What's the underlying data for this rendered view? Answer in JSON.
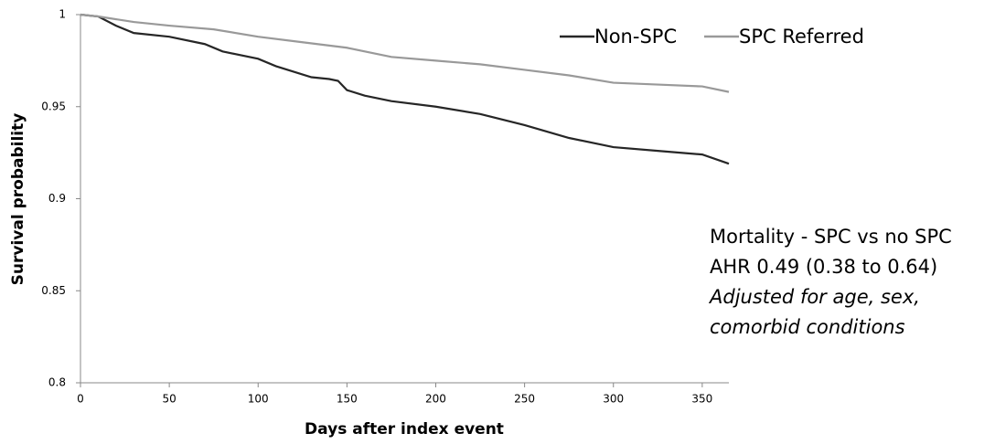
{
  "chart_data": {
    "type": "line",
    "x_label": "Days after index event",
    "y_label": "Survival probability",
    "xlim": [
      0,
      365
    ],
    "xticks": [
      0,
      50,
      100,
      150,
      200,
      250,
      300,
      350
    ],
    "ylim": [
      0.8,
      1
    ],
    "yticks": [
      0.8,
      0.85,
      0.9,
      0.95,
      1
    ],
    "grid": false,
    "legend": "top-right",
    "series": [
      {
        "name": "Non-SPC",
        "color": "#262626",
        "x": [
          0,
          10,
          20,
          30,
          50,
          70,
          80,
          100,
          110,
          130,
          140,
          145,
          150,
          160,
          175,
          200,
          225,
          250,
          275,
          300,
          325,
          350,
          365
        ],
        "values": [
          1,
          0.999,
          0.994,
          0.99,
          0.988,
          0.984,
          0.98,
          0.976,
          0.972,
          0.966,
          0.965,
          0.964,
          0.959,
          0.956,
          0.953,
          0.95,
          0.946,
          0.94,
          0.933,
          0.928,
          0.926,
          0.924,
          0.919
        ]
      },
      {
        "name": "SPC Referred",
        "color": "#999999",
        "x": [
          0,
          10,
          30,
          50,
          75,
          100,
          125,
          150,
          175,
          200,
          225,
          250,
          275,
          300,
          325,
          350,
          365
        ],
        "values": [
          1,
          0.999,
          0.996,
          0.994,
          0.992,
          0.988,
          0.985,
          0.982,
          0.977,
          0.975,
          0.973,
          0.97,
          0.967,
          0.963,
          0.962,
          0.961,
          0.958
        ]
      }
    ],
    "annotations": [
      "Mortality - SPC vs no SPC",
      "AHR 0.49 (0.38 to 0.64)",
      "Adjusted for age, sex,",
      "comorbid conditions"
    ]
  }
}
